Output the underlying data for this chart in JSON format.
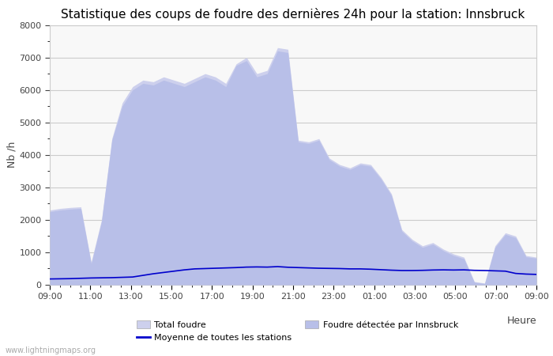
{
  "title": "Statistique des coups de foudre des dernières 24h pour la station: Innsbruck",
  "ylabel": "Nb /h",
  "xlabel_right": "Heure",
  "watermark": "www.lightningmaps.org",
  "ylim": [
    0,
    8000
  ],
  "yticks": [
    0,
    1000,
    2000,
    3000,
    4000,
    5000,
    6000,
    7000,
    8000
  ],
  "xtick_labels": [
    "09:00",
    "11:00",
    "13:00",
    "15:00",
    "17:00",
    "19:00",
    "21:00",
    "23:00",
    "01:00",
    "03:00",
    "05:00",
    "07:00",
    "09:00"
  ],
  "total_foudre_color": "#cdd0ed",
  "innsbruck_color": "#b8bfe8",
  "moyenne_color": "#0000cc",
  "background_color": "#f8f8f8",
  "grid_color": "#cccccc",
  "title_fontsize": 11,
  "n_hours": 24,
  "total_foudre": [
    2300,
    2350,
    2380,
    2400,
    700,
    2000,
    4500,
    5600,
    6100,
    6300,
    6250,
    6400,
    6300,
    6200,
    6350,
    6500,
    6400,
    6200,
    6800,
    7000,
    6500,
    6600,
    7300,
    7250,
    4450,
    4400,
    4500,
    3900,
    3700,
    3600,
    3750,
    3700,
    3300,
    2800,
    1700,
    1400,
    1200,
    1300,
    1100,
    950,
    850,
    100,
    50,
    1200,
    1600,
    1500,
    900,
    850
  ],
  "innsbruck": [
    2250,
    2300,
    2330,
    2350,
    650,
    1950,
    4450,
    5500,
    6000,
    6200,
    6150,
    6300,
    6200,
    6100,
    6250,
    6400,
    6300,
    6100,
    6750,
    6900,
    6400,
    6500,
    7200,
    7150,
    4400,
    4350,
    4450,
    3850,
    3650,
    3550,
    3700,
    3650,
    3250,
    2750,
    1650,
    1350,
    1150,
    1250,
    1050,
    900,
    800,
    80,
    40,
    1150,
    1550,
    1450,
    860,
    820
  ],
  "moyenne": [
    180,
    185,
    190,
    200,
    210,
    215,
    220,
    230,
    240,
    290,
    340,
    380,
    420,
    460,
    490,
    500,
    510,
    520,
    530,
    545,
    550,
    545,
    560,
    540,
    530,
    520,
    510,
    505,
    500,
    490,
    490,
    480,
    465,
    450,
    440,
    440,
    445,
    455,
    460,
    455,
    460,
    445,
    440,
    430,
    420,
    350,
    330,
    320
  ],
  "legend_entries": [
    "Total foudre",
    "Moyenne de toutes les stations",
    "Foudre détectée par Innsbruck"
  ]
}
